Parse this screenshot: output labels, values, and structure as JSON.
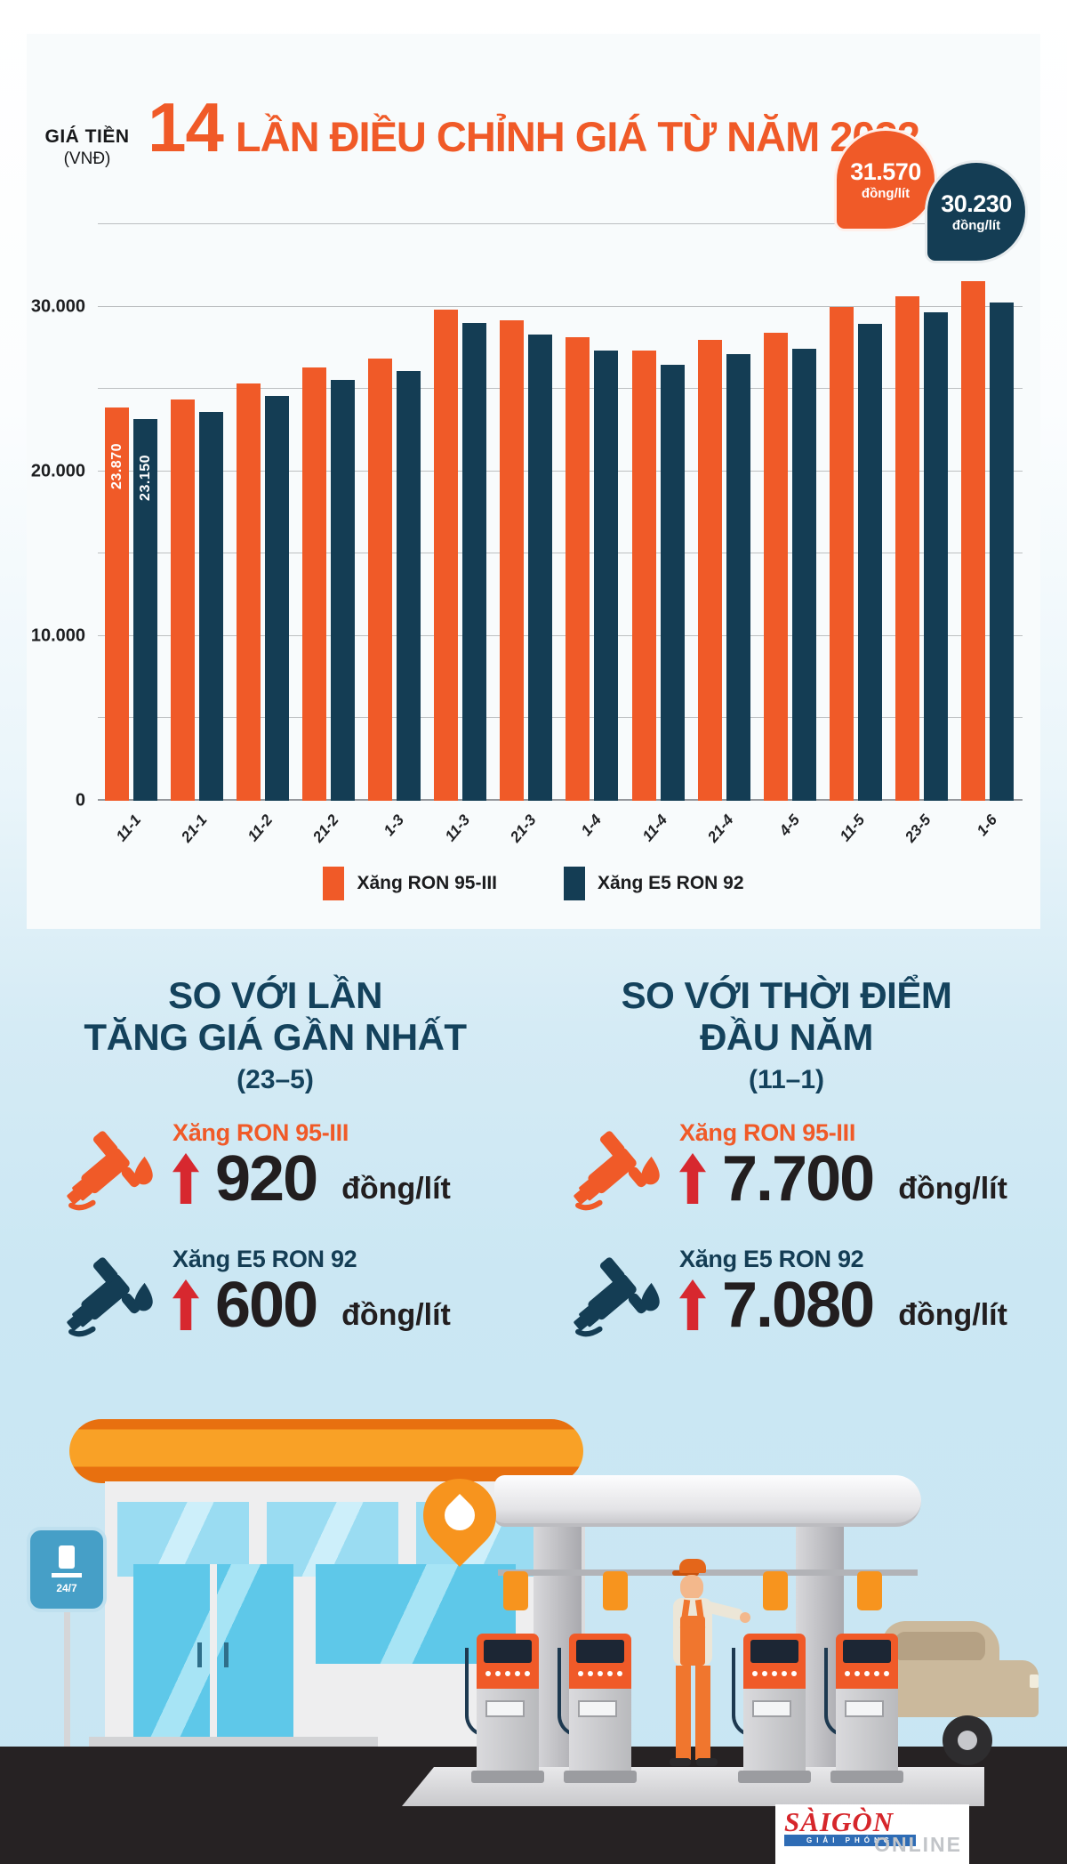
{
  "colors": {
    "orange": "#f05a28",
    "navy": "#14425c",
    "red": "#d7282f",
    "black": "#231f20",
    "roof_orange": "#f7941e",
    "bg_blue": "#cbe7f3",
    "card": "#f8fbfc",
    "sky": "#c8e6f3",
    "ground": "#262223"
  },
  "header": {
    "title_number": "14",
    "title_rest": "LẦN ĐIỀU CHỈNH GIÁ TỪ NĂM 2022"
  },
  "chart_data": {
    "type": "bar",
    "title": "14 lần điều chỉnh giá từ năm 2022",
    "y_axis_title": "GIÁ TIỀN",
    "y_axis_unit": "(VNĐ)",
    "categories": [
      "11-1",
      "21-1",
      "11-2",
      "21-2",
      "1-3",
      "11-3",
      "21-3",
      "1-4",
      "11-4",
      "21-4",
      "4-5",
      "11-5",
      "23-5",
      "1-6"
    ],
    "series": [
      {
        "name": "Xăng RON 95-III",
        "color": "#f05a28",
        "values": [
          23870,
          24360,
          25320,
          26280,
          26830,
          29820,
          29190,
          28150,
          27310,
          27990,
          28430,
          29980,
          30650,
          31570
        ]
      },
      {
        "name": "Xăng E5 RON 92",
        "color": "#143d54",
        "values": [
          23150,
          23590,
          24570,
          25530,
          26070,
          28980,
          28330,
          27310,
          26470,
          27130,
          27460,
          28950,
          29630,
          30230
        ]
      }
    ],
    "first_bar_labels": [
      "23.870",
      "23.150"
    ],
    "ylim": [
      0,
      35000
    ],
    "gridline_step": 5000,
    "grid": true,
    "legend_position": "bottom",
    "y_ticks": [
      {
        "value": 0,
        "label": "0"
      },
      {
        "value": 10000,
        "label": "10.000"
      },
      {
        "value": 20000,
        "label": "20.000"
      },
      {
        "value": 30000,
        "label": "30.000"
      }
    ],
    "callouts": [
      {
        "value": "31.570",
        "unit": "đồng/lít",
        "color": "#f05a28"
      },
      {
        "value": "30.230",
        "unit": "đồng/lít",
        "color": "#143d54"
      }
    ]
  },
  "comparison": {
    "panels": [
      {
        "heading_line1": "SO VỚI LẦN",
        "heading_line2": "TĂNG GIÁ GẦN NHẤT",
        "sub": "(23–5)",
        "rows": [
          {
            "fuel": "Xăng RON 95-III",
            "delta": "920",
            "unit": "đồng/lít",
            "color": "#f05a28"
          },
          {
            "fuel": "Xăng E5 RON 92",
            "delta": "600",
            "unit": "đồng/lít",
            "color": "#143d54"
          }
        ]
      },
      {
        "heading_line1": "SO VỚI THỜI ĐIỂM",
        "heading_line2": "ĐẦU NĂM",
        "sub": "(11–1)",
        "rows": [
          {
            "fuel": "Xăng RON 95-III",
            "delta": "7.700",
            "unit": "đồng/lít",
            "color": "#f05a28"
          },
          {
            "fuel": "Xăng E5 RON 92",
            "delta": "7.080",
            "unit": "đồng/lít",
            "color": "#143d54"
          }
        ]
      }
    ]
  },
  "scene": {
    "sign_text": "24/7",
    "logo_title": "SÀIGÒN",
    "logo_sub": "GIẢI PHÓNG",
    "logo_online": "ONLINE"
  }
}
